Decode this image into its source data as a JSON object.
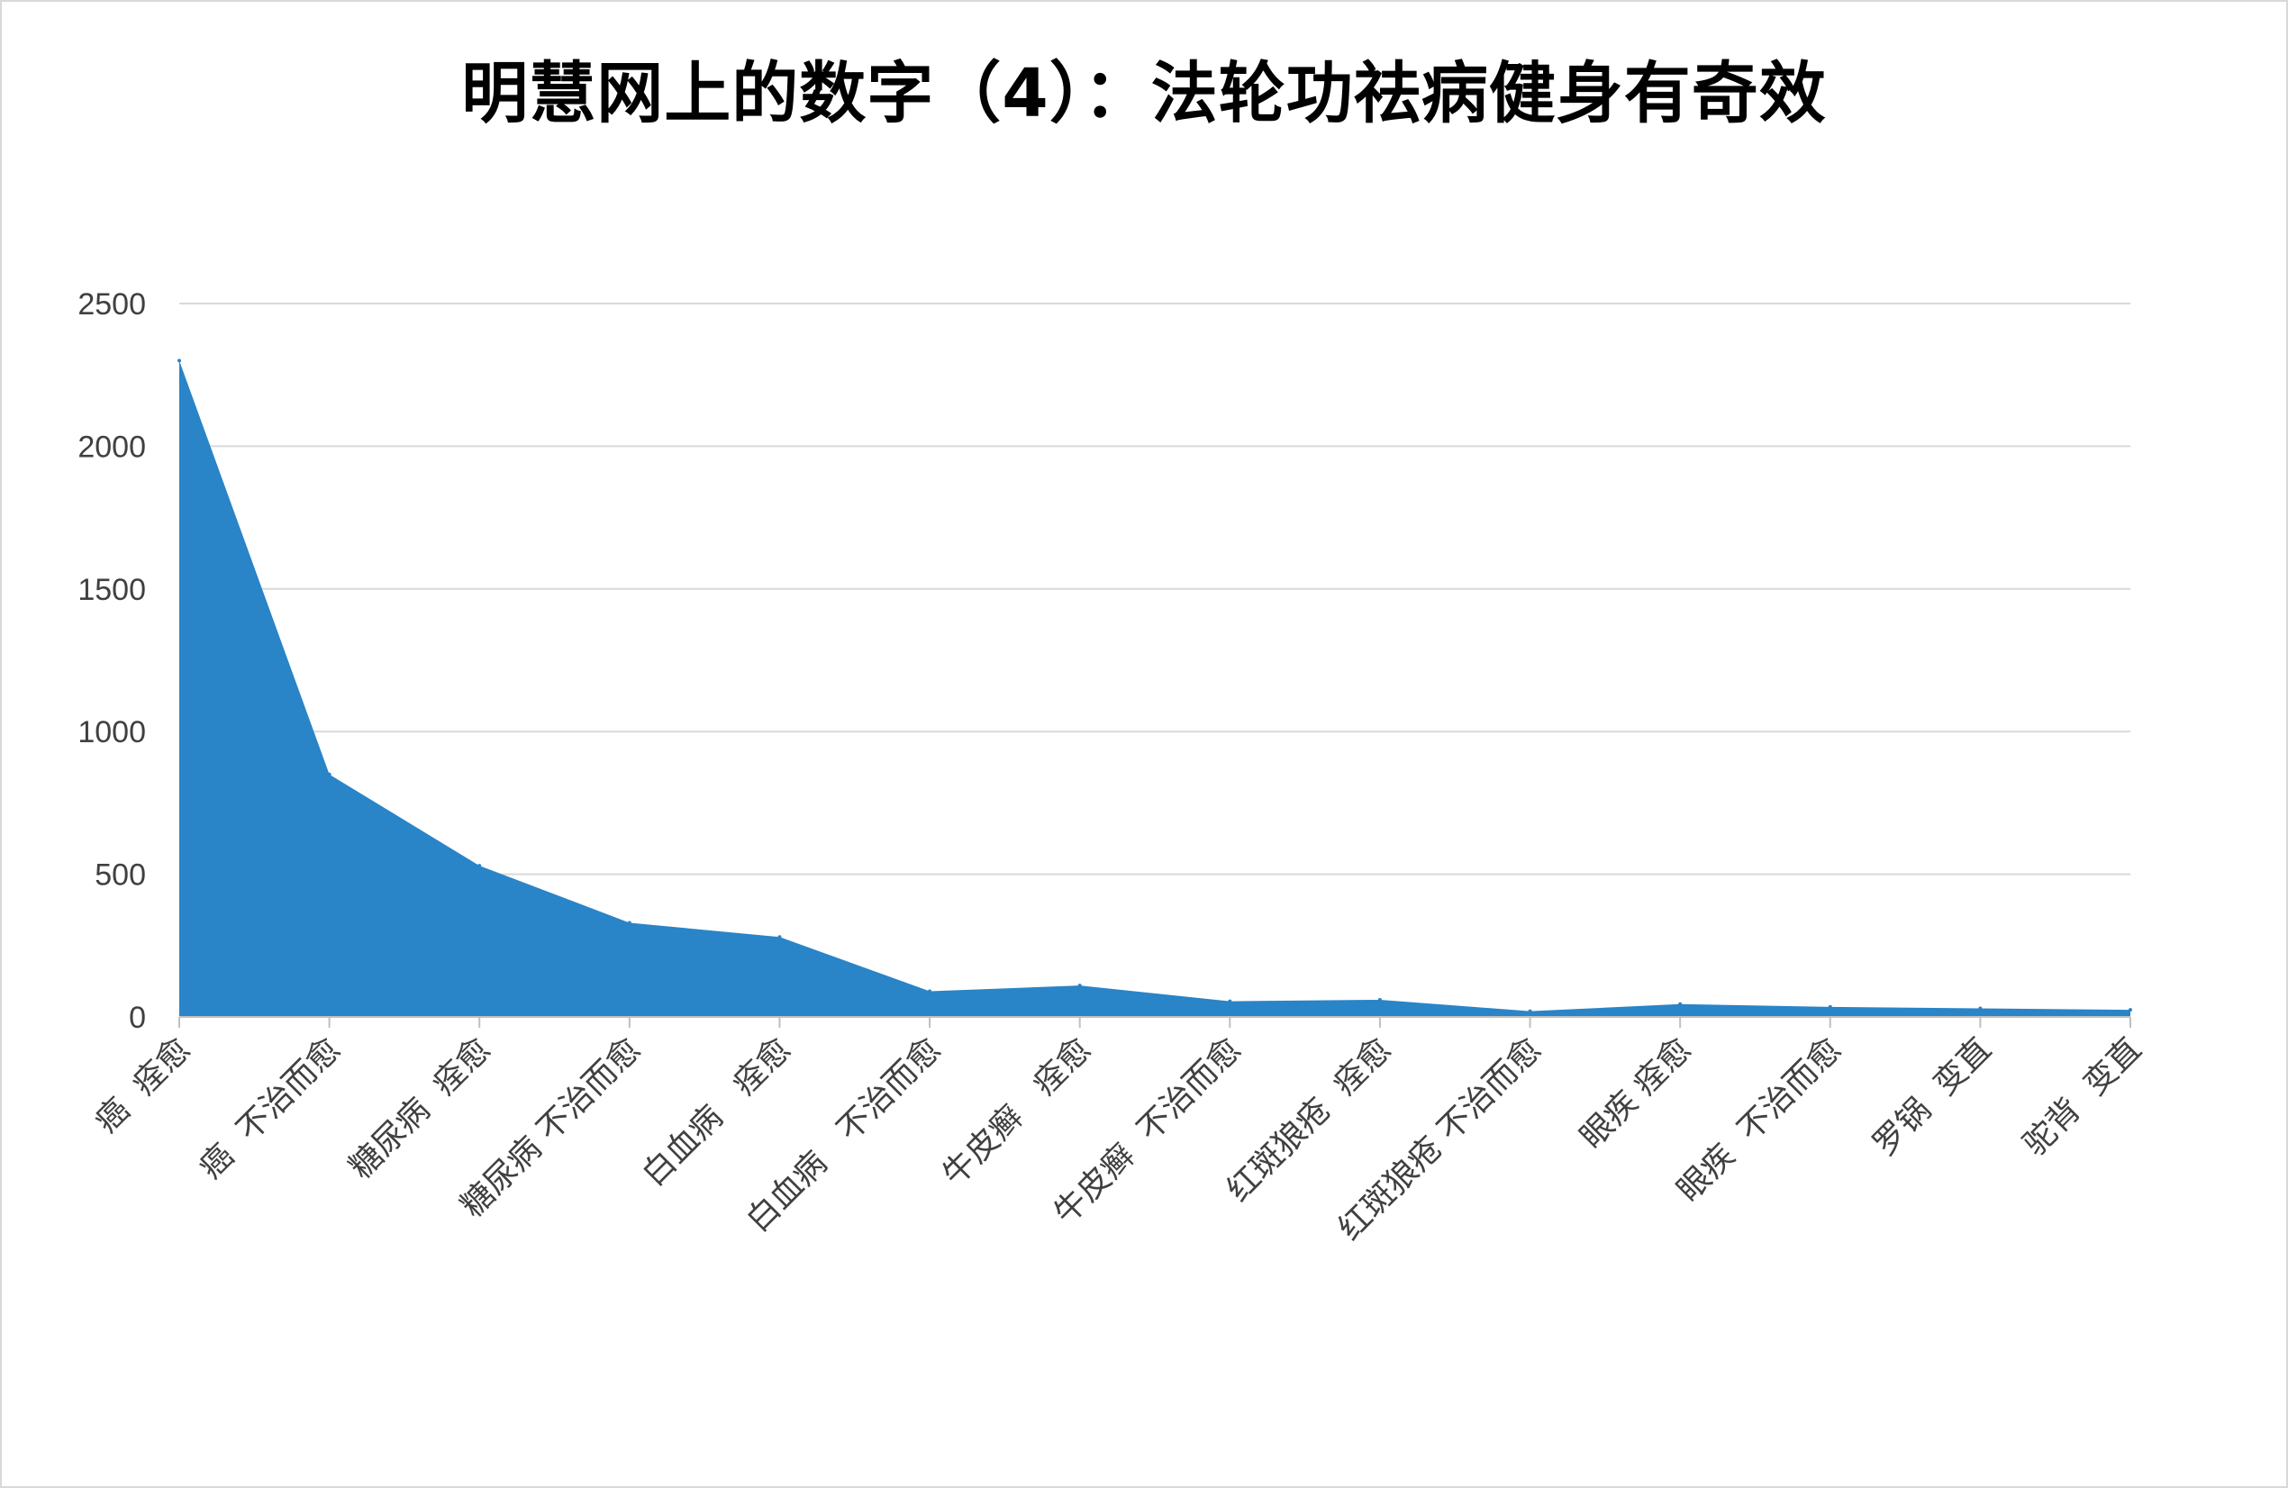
{
  "chart_data": {
    "type": "area",
    "title": "明慧网上的数字（4）：法轮功祛病健身有奇效",
    "xlabel": "",
    "ylabel": "",
    "ylim": [
      0,
      2500
    ],
    "yticks": [
      0,
      500,
      1000,
      1500,
      2000,
      2500
    ],
    "grid": true,
    "legend": "none",
    "categories": [
      "癌  痊愈",
      "癌  不治而愈",
      "糖尿病  痊愈",
      "糖尿病 不治而愈",
      "白血病   痊愈",
      "白血病   不治而愈",
      "牛皮癣   痊愈",
      "牛皮癣  不治而愈",
      "红斑狼疮  痊愈",
      "红斑狼疮 不治而愈",
      "眼疾 痊愈",
      "眼疾  不治而愈",
      "罗锅  变直",
      "驼背  变直"
    ],
    "values": [
      2300,
      850,
      530,
      330,
      280,
      90,
      110,
      55,
      60,
      20,
      45,
      35,
      30,
      25
    ],
    "colors": {
      "area": "#2984c8",
      "grid": "#d9d9d9",
      "axis": "#bfbfbf"
    }
  }
}
